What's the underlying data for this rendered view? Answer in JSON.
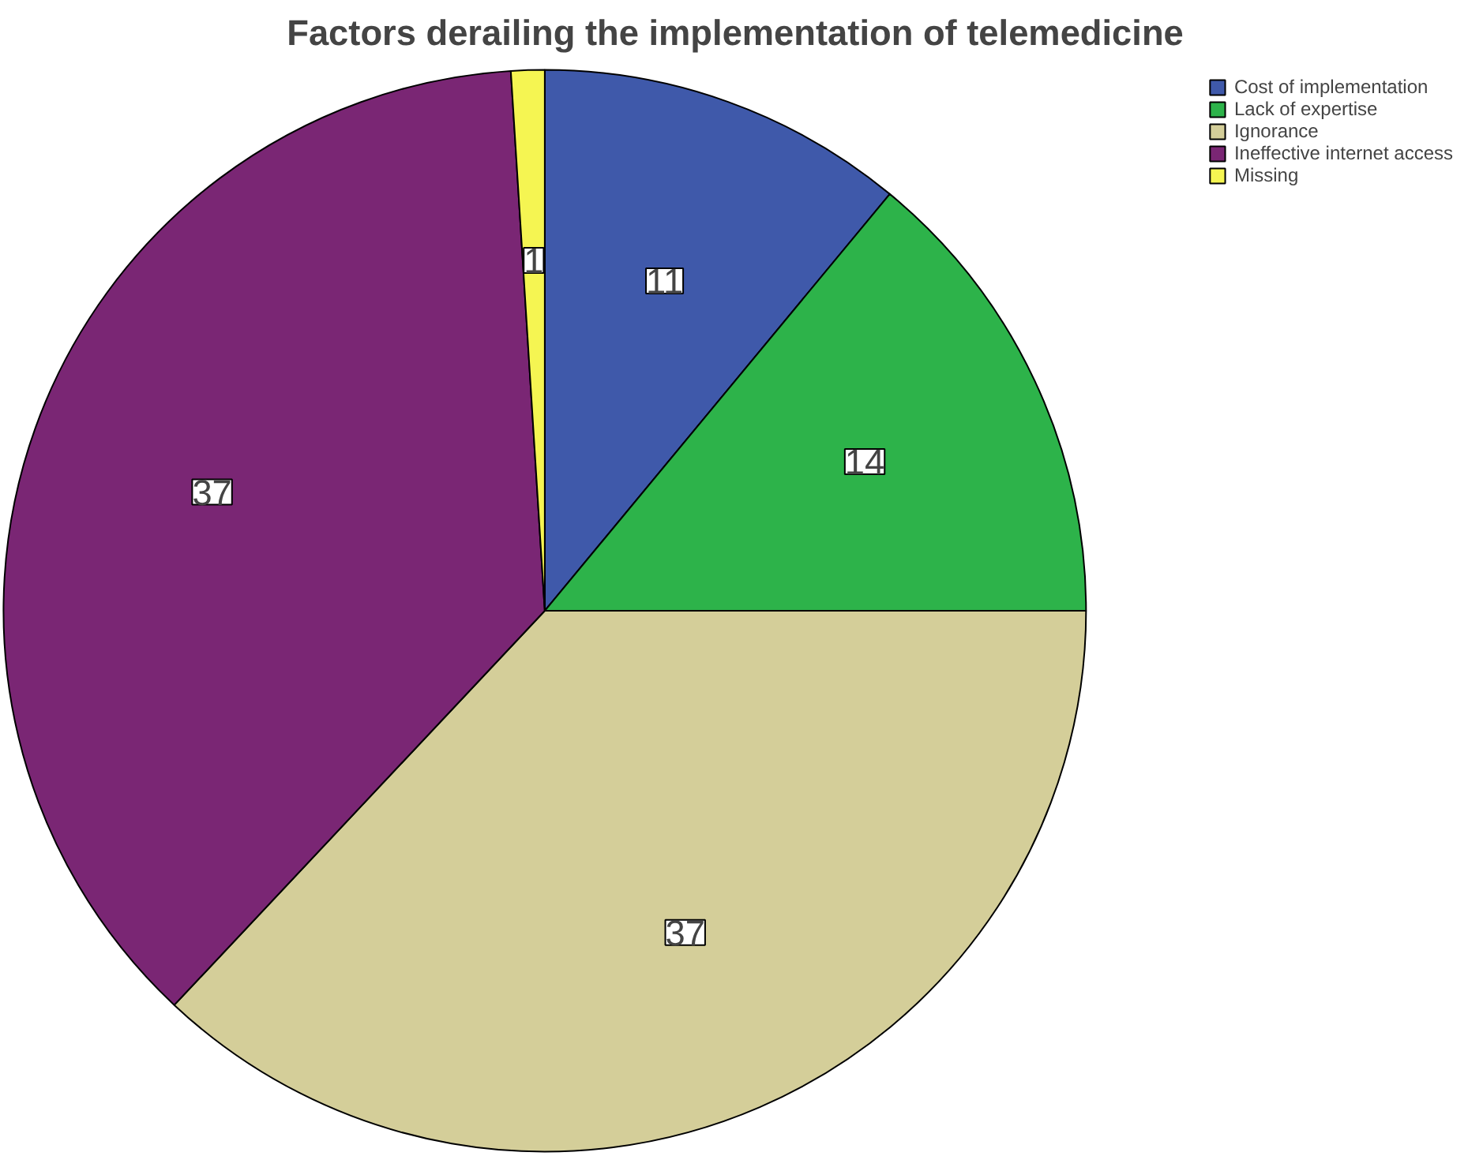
{
  "chart_data": {
    "type": "pie",
    "title": "Factors derailing the implementation of telemedicine",
    "categories": [
      "Cost of implementation",
      "Lack of expertise",
      "Ignorance",
      "Ineffective internet access",
      "Missing"
    ],
    "values": [
      11,
      14,
      37,
      37,
      1
    ],
    "colors": [
      "#3f59aa",
      "#2db34a",
      "#d4ce99",
      "#7a2674",
      "#f5f552"
    ],
    "data_labels": true,
    "legend": "top right"
  }
}
